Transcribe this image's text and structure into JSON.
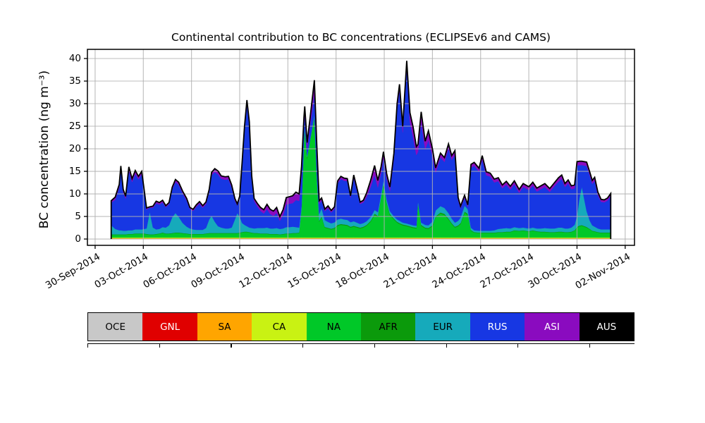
{
  "chart_data": {
    "type": "area",
    "stacked": true,
    "title": "Continental contribution to BC concentrations (ECLIPSEv6 and CAMS)",
    "ylabel": "BC concentration (ng m⁻³)",
    "xlabel": "",
    "ylim": [
      0,
      40
    ],
    "yticks": [
      0,
      5,
      10,
      15,
      20,
      25,
      30,
      35,
      40
    ],
    "grid": true,
    "grid_color": "#b0b0b0",
    "legend_position": "bottom",
    "time_origin": "30-Sep-2014 00:00",
    "time_unit": "days since 30-Sep-2014",
    "xticks": [
      {
        "day": 0,
        "label": "30-Sep-2014"
      },
      {
        "day": 3,
        "label": "03-Oct-2014"
      },
      {
        "day": 6,
        "label": "06-Oct-2014"
      },
      {
        "day": 9,
        "label": "09-Oct-2014"
      },
      {
        "day": 12,
        "label": "12-Oct-2014"
      },
      {
        "day": 15,
        "label": "15-Oct-2014"
      },
      {
        "day": 18,
        "label": "18-Oct-2014"
      },
      {
        "day": 21,
        "label": "21-Oct-2014"
      },
      {
        "day": 24,
        "label": "24-Oct-2014"
      },
      {
        "day": 27,
        "label": "27-Oct-2014"
      },
      {
        "day": 30,
        "label": "30-Oct-2014"
      },
      {
        "day": 33,
        "label": "02-Nov-2014"
      }
    ],
    "series": [
      {
        "name": "OCE",
        "color": "#c8c8c8",
        "constant": 0.06
      },
      {
        "name": "GNL",
        "color": "#e00000",
        "constant": 0.03
      },
      {
        "name": "SA",
        "color": "#ffa500",
        "constant": 0.1
      },
      {
        "name": "CA",
        "color": "#c9f213",
        "constant": 0.15
      },
      {
        "name": "NA",
        "color": "#00c828"
      },
      {
        "name": "AFR",
        "color": "#0b9a0b"
      },
      {
        "name": "EUR",
        "color": "#16aabb"
      },
      {
        "name": "RUS",
        "color": "#1737e3"
      },
      {
        "name": "ASI",
        "color": "#8a0bbf"
      },
      {
        "name": "AUS",
        "color": "#000000",
        "constant": 0.05
      }
    ],
    "variable_columns": [
      "t",
      "NA",
      "AFR",
      "EUR",
      "RUS",
      "ASI"
    ],
    "points": [
      [
        1.0,
        0.6,
        0.1,
        2.0,
        5.0,
        0.4
      ],
      [
        1.25,
        0.6,
        0.1,
        1.2,
        6.5,
        0.5
      ],
      [
        1.5,
        0.6,
        0.1,
        0.9,
        9.5,
        0.6
      ],
      [
        1.6,
        0.6,
        0.1,
        0.9,
        13.5,
        0.7
      ],
      [
        1.75,
        0.6,
        0.1,
        0.8,
        8.5,
        0.6
      ],
      [
        1.9,
        0.6,
        0.1,
        0.8,
        7.1,
        0.5
      ],
      [
        2.1,
        0.7,
        0.1,
        0.8,
        13.2,
        0.8
      ],
      [
        2.3,
        0.7,
        0.1,
        0.8,
        10.7,
        0.7
      ],
      [
        2.5,
        0.8,
        0.1,
        0.9,
        12.3,
        0.7
      ],
      [
        2.7,
        0.8,
        0.1,
        0.9,
        11.1,
        0.6
      ],
      [
        2.9,
        0.8,
        0.1,
        0.9,
        12.2,
        0.6
      ],
      [
        3.05,
        0.8,
        0.1,
        1.0,
        8.2,
        0.5
      ],
      [
        3.2,
        0.7,
        0.1,
        1.2,
        4.2,
        0.3
      ],
      [
        3.4,
        0.6,
        0.1,
        5.0,
        0.9,
        0.15
      ],
      [
        3.6,
        0.6,
        0.1,
        1.5,
        4.4,
        0.3
      ],
      [
        3.8,
        0.7,
        0.1,
        1.0,
        5.8,
        0.4
      ],
      [
        4.0,
        0.8,
        0.1,
        1.0,
        5.4,
        0.4
      ],
      [
        4.2,
        1.0,
        0.1,
        1.2,
        5.5,
        0.4
      ],
      [
        4.4,
        0.8,
        0.1,
        1.3,
        4.5,
        0.3
      ],
      [
        4.6,
        0.8,
        0.1,
        1.8,
        4.7,
        0.3
      ],
      [
        4.8,
        0.9,
        0.1,
        3.5,
        6.2,
        0.4
      ],
      [
        5.0,
        1.0,
        0.1,
        4.3,
        6.9,
        0.5
      ],
      [
        5.2,
        1.0,
        0.1,
        3.5,
        7.1,
        0.5
      ],
      [
        5.45,
        0.9,
        0.1,
        2.2,
        6.6,
        0.4
      ],
      [
        5.7,
        0.8,
        0.1,
        1.5,
        5.8,
        0.4
      ],
      [
        5.9,
        0.7,
        0.1,
        1.2,
        4.3,
        0.3
      ],
      [
        6.1,
        0.7,
        0.1,
        1.0,
        4.1,
        0.3
      ],
      [
        6.3,
        0.7,
        0.1,
        0.9,
        5.1,
        0.4
      ],
      [
        6.5,
        0.7,
        0.1,
        0.9,
        5.8,
        0.4
      ],
      [
        6.7,
        0.7,
        0.1,
        0.9,
        4.9,
        0.4
      ],
      [
        6.9,
        0.8,
        0.1,
        1.2,
        5.3,
        0.4
      ],
      [
        7.1,
        0.9,
        0.1,
        3.0,
        6.1,
        0.5
      ],
      [
        7.25,
        0.9,
        0.1,
        3.8,
        9.0,
        0.6
      ],
      [
        7.45,
        0.9,
        0.1,
        2.5,
        11.0,
        0.7
      ],
      [
        7.65,
        0.9,
        0.1,
        1.5,
        11.5,
        0.7
      ],
      [
        7.85,
        0.9,
        0.1,
        1.2,
        10.8,
        0.6
      ],
      [
        8.1,
        0.9,
        0.1,
        1.0,
        10.8,
        0.6
      ],
      [
        8.3,
        0.9,
        0.1,
        1.0,
        10.9,
        0.6
      ],
      [
        8.5,
        0.9,
        0.1,
        1.2,
        8.9,
        0.5
      ],
      [
        8.7,
        0.9,
        0.1,
        3.0,
        4.2,
        0.4
      ],
      [
        8.85,
        0.9,
        0.1,
        4.4,
        1.7,
        0.3
      ],
      [
        9.0,
        1.0,
        0.1,
        3.5,
        4.1,
        0.4
      ],
      [
        9.15,
        1.1,
        0.1,
        2.0,
        12.8,
        0.6
      ],
      [
        9.3,
        1.2,
        0.1,
        1.5,
        21.0,
        0.8
      ],
      [
        9.45,
        1.2,
        0.1,
        1.2,
        27.0,
        0.9
      ],
      [
        9.6,
        1.1,
        0.1,
        1.0,
        22.6,
        0.8
      ],
      [
        9.75,
        1.0,
        0.1,
        1.0,
        10.9,
        0.6
      ],
      [
        9.9,
        0.9,
        0.1,
        1.0,
        6.1,
        0.5
      ],
      [
        10.1,
        0.9,
        0.1,
        1.1,
        4.8,
        0.6
      ],
      [
        10.3,
        0.8,
        0.1,
        1.2,
        3.8,
        0.7
      ],
      [
        10.5,
        0.8,
        0.1,
        1.2,
        3.2,
        0.8
      ],
      [
        10.7,
        0.8,
        0.1,
        1.3,
        4.1,
        1.0
      ],
      [
        10.9,
        0.7,
        0.1,
        1.2,
        3.2,
        1.0
      ],
      [
        11.1,
        0.7,
        0.1,
        1.2,
        2.8,
        1.0
      ],
      [
        11.3,
        0.7,
        0.1,
        1.3,
        3.3,
        1.2
      ],
      [
        11.5,
        0.6,
        0.1,
        1.2,
        1.8,
        0.9
      ],
      [
        11.7,
        0.7,
        0.1,
        1.2,
        3.0,
        1.1
      ],
      [
        11.9,
        0.8,
        0.1,
        1.4,
        5.0,
        1.5
      ],
      [
        12.1,
        0.8,
        0.1,
        1.4,
        5.2,
        1.5
      ],
      [
        12.3,
        0.9,
        0.1,
        1.4,
        5.2,
        1.6
      ],
      [
        12.5,
        0.9,
        0.1,
        1.3,
        6.0,
        1.7
      ],
      [
        12.7,
        1.0,
        0.1,
        1.1,
        5.9,
        1.5
      ],
      [
        12.85,
        6.0,
        0.2,
        0.8,
        7.0,
        1.7
      ],
      [
        13.0,
        21.0,
        0.3,
        0.5,
        2.9,
        1.9
      ],
      [
        13.05,
        24.0,
        0.3,
        0.4,
        2.4,
        1.9
      ],
      [
        13.2,
        17.5,
        0.3,
        0.4,
        1.4,
        1.4
      ],
      [
        13.4,
        21.5,
        0.3,
        0.4,
        3.0,
        1.8
      ],
      [
        13.65,
        26.5,
        0.3,
        0.4,
        4.6,
        3.0
      ],
      [
        13.8,
        13.0,
        0.3,
        0.8,
        4.4,
        2.0
      ],
      [
        13.95,
        3.5,
        0.2,
        1.5,
        2.2,
        0.7
      ],
      [
        14.1,
        4.5,
        0.2,
        1.8,
        1.7,
        0.5
      ],
      [
        14.3,
        2.2,
        0.15,
        1.5,
        2.0,
        0.4
      ],
      [
        14.5,
        2.0,
        0.15,
        1.3,
        3.0,
        0.5
      ],
      [
        14.7,
        1.8,
        0.15,
        1.2,
        2.4,
        0.4
      ],
      [
        14.9,
        2.0,
        0.15,
        1.2,
        3.0,
        0.4
      ],
      [
        15.1,
        2.6,
        0.2,
        1.2,
        8.0,
        0.5
      ],
      [
        15.3,
        2.8,
        0.2,
        1.2,
        8.8,
        0.5
      ],
      [
        15.5,
        2.7,
        0.2,
        1.1,
        8.6,
        0.5
      ],
      [
        15.7,
        2.6,
        0.2,
        1.1,
        8.6,
        0.5
      ],
      [
        15.9,
        2.2,
        0.2,
        1.0,
        5.4,
        0.4
      ],
      [
        16.1,
        2.4,
        0.2,
        1.0,
        9.6,
        0.6
      ],
      [
        16.3,
        2.2,
        0.2,
        0.9,
        7.1,
        0.5
      ],
      [
        16.5,
        2.0,
        0.2,
        0.8,
        4.4,
        0.4
      ],
      [
        16.7,
        2.2,
        0.2,
        0.8,
        4.6,
        0.4
      ],
      [
        16.9,
        2.6,
        0.2,
        0.8,
        5.4,
        0.8
      ],
      [
        17.15,
        3.5,
        0.2,
        0.8,
        6.7,
        1.4
      ],
      [
        17.4,
        5.0,
        0.3,
        0.8,
        7.8,
        2.0
      ],
      [
        17.6,
        4.5,
        0.3,
        0.8,
        5.5,
        1.5
      ],
      [
        17.8,
        8.5,
        0.3,
        0.8,
        4.7,
        1.3
      ],
      [
        17.95,
        11.5,
        0.35,
        0.8,
        5.0,
        1.3
      ],
      [
        18.15,
        7.5,
        0.3,
        0.7,
        4.6,
        1.0
      ],
      [
        18.35,
        5.0,
        0.25,
        0.6,
        4.4,
        0.9
      ],
      [
        18.6,
        4.0,
        0.2,
        0.5,
        12.9,
        1.0
      ],
      [
        18.8,
        3.3,
        0.2,
        0.5,
        24.5,
        1.1
      ],
      [
        18.95,
        3.0,
        0.2,
        0.5,
        29.0,
        1.2
      ],
      [
        19.15,
        2.7,
        0.2,
        0.4,
        20.0,
        1.3
      ],
      [
        19.4,
        2.5,
        0.2,
        0.4,
        34.4,
        1.6
      ],
      [
        19.6,
        2.3,
        0.2,
        0.4,
        22.7,
        2.0
      ],
      [
        19.8,
        2.1,
        0.2,
        0.4,
        19.5,
        2.2
      ],
      [
        20.0,
        2.0,
        0.2,
        0.4,
        15.7,
        1.8
      ],
      [
        20.1,
        7.5,
        0.2,
        0.5,
        10.8,
        1.6
      ],
      [
        20.3,
        2.6,
        0.2,
        0.5,
        22.3,
        2.2
      ],
      [
        20.55,
        2.0,
        0.2,
        0.6,
        16.7,
        1.8
      ],
      [
        20.75,
        1.9,
        0.2,
        0.6,
        18.9,
        2.0
      ],
      [
        21.0,
        2.5,
        0.2,
        0.8,
        14.6,
        1.5
      ],
      [
        21.2,
        4.5,
        0.2,
        1.3,
        8.4,
        1.0
      ],
      [
        21.5,
        5.3,
        0.25,
        1.4,
        10.8,
        0.9
      ],
      [
        21.75,
        5.0,
        0.25,
        1.3,
        10.2,
        0.9
      ],
      [
        22.0,
        4.0,
        0.2,
        1.2,
        14.4,
        0.9
      ],
      [
        22.2,
        3.0,
        0.2,
        1.0,
        13.0,
        0.9
      ],
      [
        22.4,
        2.2,
        0.2,
        0.9,
        15.0,
        0.9
      ],
      [
        22.6,
        2.5,
        0.2,
        1.0,
        4.6,
        0.5
      ],
      [
        22.75,
        3.0,
        0.2,
        1.2,
        2.1,
        0.4
      ],
      [
        23.0,
        5.5,
        0.25,
        1.3,
        1.75,
        0.5
      ],
      [
        23.2,
        5.0,
        0.25,
        1.0,
        0.55,
        0.4
      ],
      [
        23.4,
        1.5,
        0.15,
        0.5,
        13.3,
        0.7
      ],
      [
        23.6,
        1.1,
        0.1,
        0.4,
        14.3,
        0.7
      ],
      [
        23.9,
        1.0,
        0.1,
        0.4,
        13.1,
        0.7
      ],
      [
        24.1,
        1.0,
        0.1,
        0.4,
        15.8,
        0.8
      ],
      [
        24.35,
        1.0,
        0.1,
        0.4,
        12.3,
        0.7
      ],
      [
        24.6,
        1.0,
        0.1,
        0.4,
        12.0,
        0.7
      ],
      [
        24.85,
        1.0,
        0.1,
        0.5,
        10.6,
        0.7
      ],
      [
        25.1,
        1.1,
        0.1,
        0.7,
        10.6,
        0.7
      ],
      [
        25.35,
        1.1,
        0.1,
        0.8,
        8.9,
        0.7
      ],
      [
        25.6,
        1.2,
        0.1,
        0.8,
        9.6,
        0.7
      ],
      [
        25.85,
        1.2,
        0.1,
        0.7,
        8.6,
        0.7
      ],
      [
        26.1,
        1.5,
        0.1,
        0.7,
        9.5,
        0.7
      ],
      [
        26.4,
        1.4,
        0.1,
        0.6,
        7.8,
        0.7
      ],
      [
        26.65,
        1.5,
        0.1,
        0.6,
        9.0,
        0.7
      ],
      [
        27.0,
        1.3,
        0.1,
        0.6,
        8.5,
        0.7
      ],
      [
        27.25,
        1.5,
        0.1,
        0.6,
        9.3,
        0.7
      ],
      [
        27.5,
        1.3,
        0.1,
        0.6,
        8.2,
        0.7
      ],
      [
        27.75,
        1.2,
        0.1,
        0.7,
        8.7,
        0.7
      ],
      [
        28.0,
        1.2,
        0.1,
        0.8,
        9.1,
        0.7
      ],
      [
        28.3,
        1.1,
        0.1,
        0.8,
        8.1,
        0.7
      ],
      [
        28.6,
        1.1,
        0.1,
        0.8,
        9.4,
        0.7
      ],
      [
        28.85,
        1.2,
        0.1,
        0.9,
        10.2,
        0.8
      ],
      [
        29.05,
        1.2,
        0.1,
        0.9,
        10.8,
        0.8
      ],
      [
        29.25,
        1.1,
        0.1,
        0.8,
        9.2,
        0.7
      ],
      [
        29.45,
        1.1,
        0.1,
        0.8,
        10.0,
        0.7
      ],
      [
        29.65,
        1.2,
        0.1,
        0.9,
        8.5,
        0.7
      ],
      [
        29.85,
        1.5,
        0.1,
        1.2,
        8.1,
        0.7
      ],
      [
        30.0,
        2.2,
        0.15,
        2.5,
        11.1,
        0.8
      ],
      [
        30.15,
        2.5,
        0.15,
        6.0,
        7.4,
        0.8
      ],
      [
        30.3,
        2.6,
        0.15,
        8.5,
        4.8,
        0.8
      ],
      [
        30.45,
        2.4,
        0.15,
        6.0,
        7.4,
        0.8
      ],
      [
        30.6,
        2.2,
        0.15,
        3.5,
        10.0,
        0.8
      ],
      [
        30.8,
        1.8,
        0.1,
        1.8,
        10.0,
        0.7
      ],
      [
        30.95,
        1.4,
        0.1,
        1.2,
        9.2,
        0.7
      ],
      [
        31.1,
        1.3,
        0.1,
        1.0,
        10.2,
        0.7
      ],
      [
        31.3,
        1.1,
        0.1,
        0.8,
        7.4,
        0.6
      ],
      [
        31.5,
        1.0,
        0.1,
        0.7,
        6.1,
        0.5
      ],
      [
        31.7,
        1.0,
        0.1,
        0.7,
        6.0,
        0.5
      ],
      [
        31.9,
        1.0,
        0.1,
        0.7,
        6.4,
        0.5
      ],
      [
        32.1,
        1.0,
        0.1,
        0.7,
        7.4,
        0.5
      ]
    ]
  }
}
